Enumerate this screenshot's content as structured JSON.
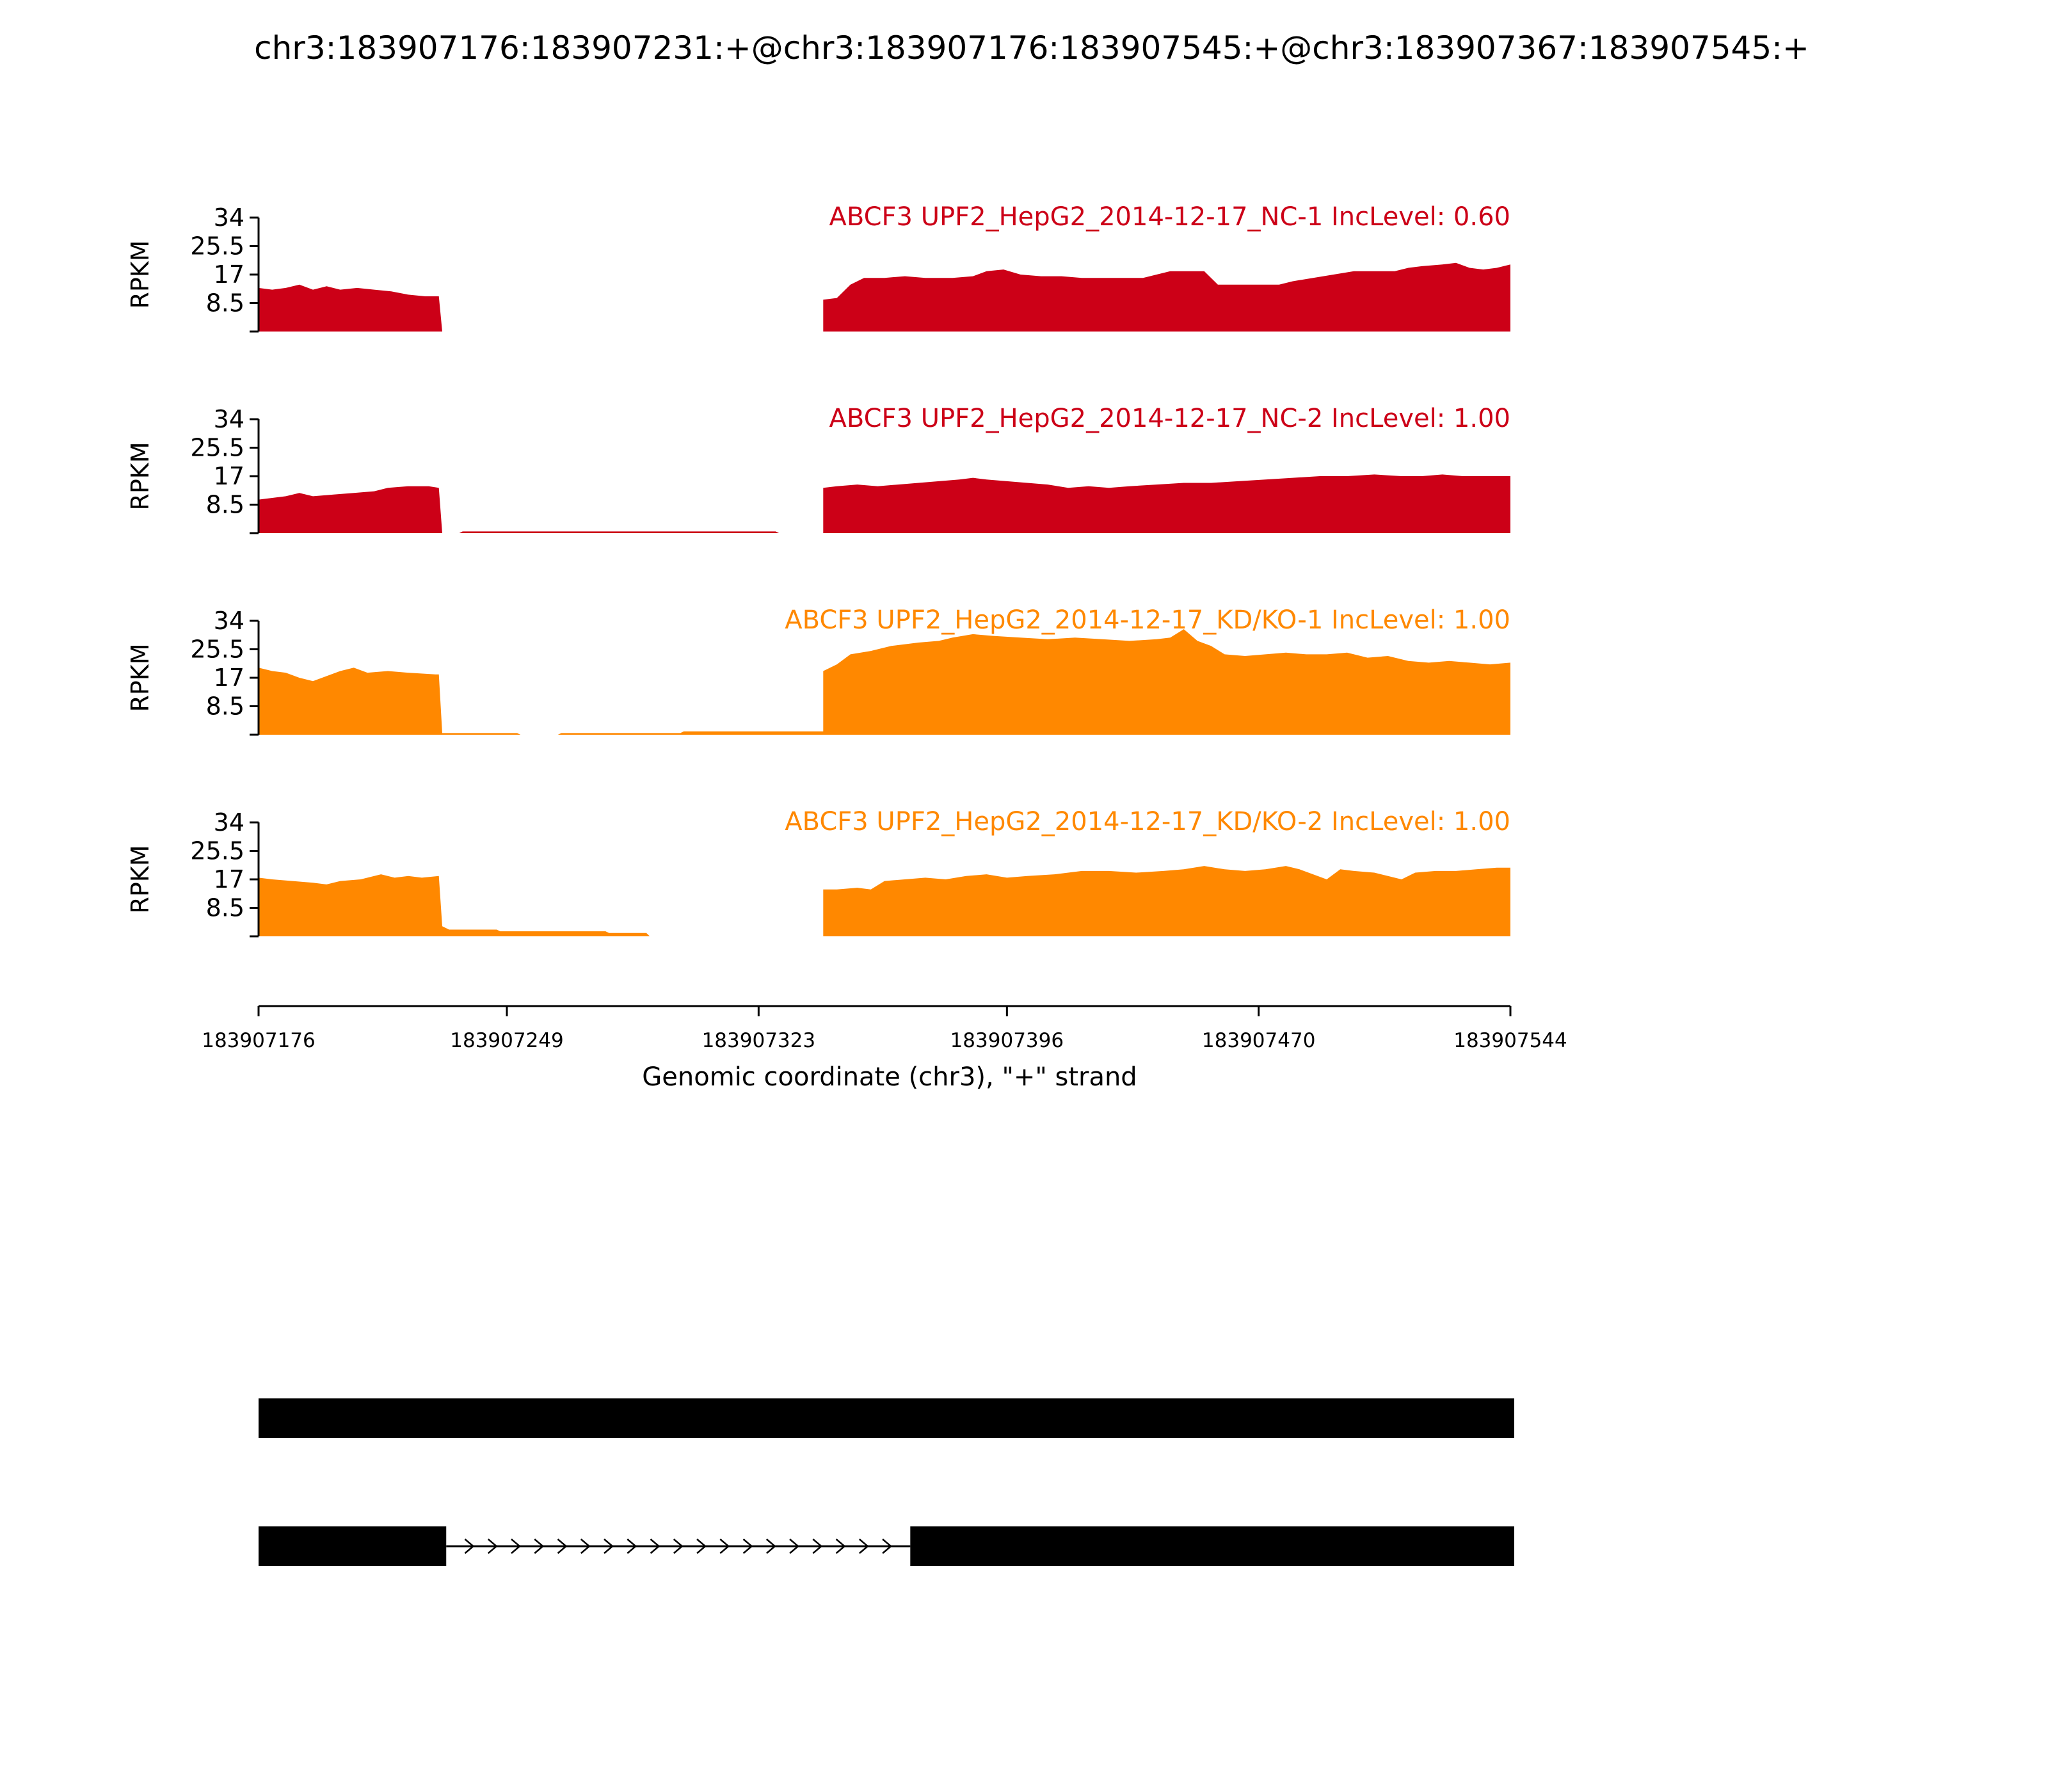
{
  "title": "chr3:183907176:183907231:+@chr3:183907176:183907545:+@chr3:183907367:183907545:+",
  "colors": {
    "nc": "#cc0017",
    "kd": "#ff8800",
    "axis": "#000000",
    "gene": "#000000"
  },
  "chart_data": {
    "type": "area",
    "title": "chr3:183907176:183907231:+@chr3:183907176:183907545:+@chr3:183907367:183907545:+",
    "xlabel": "Genomic coordinate (chr3), \"+\" strand",
    "xlim": [
      183907176,
      183907544
    ],
    "xticks": [
      183907176,
      183907249,
      183907323,
      183907396,
      183907470,
      183907544
    ],
    "xtick_labels": [
      "183907176",
      "183907249",
      "183907323",
      "183907396",
      "183907470",
      "183907544"
    ],
    "ylabel": "RPKM",
    "ylim": [
      0,
      34
    ],
    "yticks": [
      0,
      8.5,
      17,
      25.5,
      34
    ],
    "ytick_labels": [
      "",
      "8.5",
      "17",
      "25.5",
      "34"
    ],
    "series": [
      {
        "name": "ABCF3 UPF2_HepG2_2014-12-17_NC-1 IncLevel: 0.60",
        "color": "#cc0017",
        "points": [
          [
            183907176,
            13
          ],
          [
            183907180,
            12.5
          ],
          [
            183907184,
            13
          ],
          [
            183907188,
            14
          ],
          [
            183907192,
            12.5
          ],
          [
            183907196,
            13.5
          ],
          [
            183907200,
            12.5
          ],
          [
            183907205,
            13
          ],
          [
            183907210,
            12.5
          ],
          [
            183907215,
            12
          ],
          [
            183907220,
            11
          ],
          [
            183907225,
            10.5
          ],
          [
            183907229,
            10.5
          ],
          [
            183907230,
            0
          ],
          [
            183907342,
            0
          ],
          [
            183907342,
            9.5
          ],
          [
            183907346,
            10
          ],
          [
            183907350,
            14
          ],
          [
            183907354,
            16
          ],
          [
            183907360,
            16
          ],
          [
            183907366,
            16.5
          ],
          [
            183907372,
            16
          ],
          [
            183907380,
            16
          ],
          [
            183907386,
            16.5
          ],
          [
            183907390,
            18
          ],
          [
            183907395,
            18.5
          ],
          [
            183907400,
            17
          ],
          [
            183907406,
            16.5
          ],
          [
            183907412,
            16.5
          ],
          [
            183907418,
            16
          ],
          [
            183907424,
            16
          ],
          [
            183907436,
            16
          ],
          [
            183907440,
            17
          ],
          [
            183907444,
            18
          ],
          [
            183907450,
            18
          ],
          [
            183907454,
            18
          ],
          [
            183907458,
            14
          ],
          [
            183907462,
            14
          ],
          [
            183907476,
            14
          ],
          [
            183907480,
            15
          ],
          [
            183907486,
            16
          ],
          [
            183907492,
            17
          ],
          [
            183907498,
            18
          ],
          [
            183907504,
            18
          ],
          [
            183907510,
            18
          ],
          [
            183907514,
            19
          ],
          [
            183907518,
            19.5
          ],
          [
            183907524,
            20
          ],
          [
            183907528,
            20.5
          ],
          [
            183907532,
            19
          ],
          [
            183907536,
            18.5
          ],
          [
            183907540,
            19
          ],
          [
            183907544,
            20
          ]
        ]
      },
      {
        "name": "ABCF3 UPF2_HepG2_2014-12-17_NC-2 IncLevel: 1.00",
        "color": "#cc0017",
        "points": [
          [
            183907176,
            10
          ],
          [
            183907180,
            10.5
          ],
          [
            183907184,
            11
          ],
          [
            183907188,
            12
          ],
          [
            183907192,
            11
          ],
          [
            183907198,
            11.5
          ],
          [
            183907204,
            12
          ],
          [
            183907210,
            12.5
          ],
          [
            183907214,
            13.5
          ],
          [
            183907220,
            14
          ],
          [
            183907226,
            14
          ],
          [
            183907229,
            13.5
          ],
          [
            183907230,
            0
          ],
          [
            183907235,
            0
          ],
          [
            183907236,
            0.5
          ],
          [
            183907328,
            0.5
          ],
          [
            183907329,
            0
          ],
          [
            183907342,
            0
          ],
          [
            183907342,
            13.5
          ],
          [
            183907346,
            14
          ],
          [
            183907352,
            14.5
          ],
          [
            183907358,
            14
          ],
          [
            183907364,
            14.5
          ],
          [
            183907370,
            15
          ],
          [
            183907376,
            15.5
          ],
          [
            183907382,
            16
          ],
          [
            183907386,
            16.5
          ],
          [
            183907390,
            16
          ],
          [
            183907396,
            15.5
          ],
          [
            183907402,
            15
          ],
          [
            183907408,
            14.5
          ],
          [
            183907414,
            13.5
          ],
          [
            183907420,
            14
          ],
          [
            183907426,
            13.5
          ],
          [
            183907432,
            14
          ],
          [
            183907440,
            14.5
          ],
          [
            183907448,
            15
          ],
          [
            183907456,
            15
          ],
          [
            183907464,
            15.5
          ],
          [
            183907472,
            16
          ],
          [
            183907480,
            16.5
          ],
          [
            183907488,
            17
          ],
          [
            183907496,
            17
          ],
          [
            183907504,
            17.5
          ],
          [
            183907512,
            17
          ],
          [
            183907518,
            17
          ],
          [
            183907524,
            17.5
          ],
          [
            183907530,
            17
          ],
          [
            183907536,
            17
          ],
          [
            183907544,
            17
          ]
        ]
      },
      {
        "name": "ABCF3 UPF2_HepG2_2014-12-17_KD/KO-1 IncLevel: 1.00",
        "color": "#ff8800",
        "points": [
          [
            183907176,
            20
          ],
          [
            183907180,
            19
          ],
          [
            183907184,
            18.5
          ],
          [
            183907188,
            17
          ],
          [
            183907192,
            16
          ],
          [
            183907196,
            17.5
          ],
          [
            183907200,
            19
          ],
          [
            183907204,
            20
          ],
          [
            183907208,
            18.5
          ],
          [
            183907214,
            19
          ],
          [
            183907220,
            18.5
          ],
          [
            183907228,
            18
          ],
          [
            183907229,
            18
          ],
          [
            183907230,
            0.5
          ],
          [
            183907252,
            0.5
          ],
          [
            183907253,
            0
          ],
          [
            183907264,
            0
          ],
          [
            183907265,
            0.5
          ],
          [
            183907300,
            0.5
          ],
          [
            183907301,
            1
          ],
          [
            183907342,
            1
          ],
          [
            183907342,
            19
          ],
          [
            183907346,
            21
          ],
          [
            183907350,
            24
          ],
          [
            183907356,
            25
          ],
          [
            183907362,
            26.5
          ],
          [
            183907370,
            27.5
          ],
          [
            183907376,
            28
          ],
          [
            183907380,
            29
          ],
          [
            183907386,
            30
          ],
          [
            183907392,
            29.5
          ],
          [
            183907400,
            29
          ],
          [
            183907408,
            28.5
          ],
          [
            183907416,
            29
          ],
          [
            183907424,
            28.5
          ],
          [
            183907432,
            28
          ],
          [
            183907440,
            28.5
          ],
          [
            183907444,
            29
          ],
          [
            183907448,
            31.5
          ],
          [
            183907452,
            28
          ],
          [
            183907456,
            26.5
          ],
          [
            183907460,
            24
          ],
          [
            183907466,
            23.5
          ],
          [
            183907472,
            24
          ],
          [
            183907478,
            24.5
          ],
          [
            183907484,
            24
          ],
          [
            183907490,
            24
          ],
          [
            183907496,
            24.5
          ],
          [
            183907502,
            23
          ],
          [
            183907508,
            23.5
          ],
          [
            183907514,
            22
          ],
          [
            183907520,
            21.5
          ],
          [
            183907526,
            22
          ],
          [
            183907532,
            21.5
          ],
          [
            183907538,
            21
          ],
          [
            183907544,
            21.5
          ]
        ]
      },
      {
        "name": "ABCF3 UPF2_HepG2_2014-12-17_KD/KO-2 IncLevel: 1.00",
        "color": "#ff8800",
        "points": [
          [
            183907176,
            17.5
          ],
          [
            183907180,
            17
          ],
          [
            183907186,
            16.5
          ],
          [
            183907192,
            16
          ],
          [
            183907196,
            15.5
          ],
          [
            183907200,
            16.5
          ],
          [
            183907206,
            17
          ],
          [
            183907212,
            18.5
          ],
          [
            183907216,
            17.5
          ],
          [
            183907220,
            18
          ],
          [
            183907224,
            17.5
          ],
          [
            183907229,
            18
          ],
          [
            183907230,
            3
          ],
          [
            183907232,
            2
          ],
          [
            183907246,
            2
          ],
          [
            183907247,
            1.5
          ],
          [
            183907278,
            1.5
          ],
          [
            183907279,
            1
          ],
          [
            183907290,
            1
          ],
          [
            183907291,
            0
          ],
          [
            183907342,
            0
          ],
          [
            183907342,
            14
          ],
          [
            183907346,
            14
          ],
          [
            183907352,
            14.5
          ],
          [
            183907356,
            14
          ],
          [
            183907360,
            16.5
          ],
          [
            183907366,
            17
          ],
          [
            183907372,
            17.5
          ],
          [
            183907378,
            17
          ],
          [
            183907384,
            18
          ],
          [
            183907390,
            18.5
          ],
          [
            183907396,
            17.5
          ],
          [
            183907402,
            18
          ],
          [
            183907410,
            18.5
          ],
          [
            183907418,
            19.5
          ],
          [
            183907426,
            19.5
          ],
          [
            183907434,
            19
          ],
          [
            183907442,
            19.5
          ],
          [
            183907448,
            20
          ],
          [
            183907454,
            21
          ],
          [
            183907460,
            20
          ],
          [
            183907466,
            19.5
          ],
          [
            183907472,
            20
          ],
          [
            183907478,
            21
          ],
          [
            183907482,
            20
          ],
          [
            183907486,
            18.5
          ],
          [
            183907490,
            17
          ],
          [
            183907494,
            20
          ],
          [
            183907498,
            19.5
          ],
          [
            183907504,
            19
          ],
          [
            183907508,
            18
          ],
          [
            183907512,
            17
          ],
          [
            183907516,
            19
          ],
          [
            183907522,
            19.5
          ],
          [
            183907528,
            19.5
          ],
          [
            183907534,
            20
          ],
          [
            183907540,
            20.5
          ],
          [
            183907544,
            20.5
          ]
        ]
      }
    ],
    "gene_models": [
      {
        "exons": [
          [
            183907176,
            183907544
          ]
        ]
      },
      {
        "exons": [
          [
            183907176,
            183907231
          ],
          [
            183907367,
            183907544
          ]
        ],
        "intron": [
          183907231,
          183907367
        ]
      }
    ]
  }
}
